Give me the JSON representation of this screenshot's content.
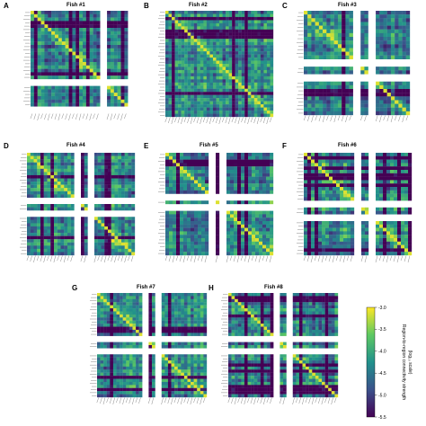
{
  "figure": {
    "panels": [
      {
        "letter": "A",
        "title": "Fish #1",
        "n": 30,
        "gaps": [
          20,
          28
        ],
        "seed": 11
      },
      {
        "letter": "B",
        "title": "Fish #2",
        "n": 34,
        "gaps": [],
        "seed": 22
      },
      {
        "letter": "C",
        "title": "Fish #3",
        "n": 28,
        "gaps": [
          13,
          17
        ],
        "seed": 33
      },
      {
        "letter": "D",
        "title": "Fish #4",
        "n": 32,
        "gaps": [
          14,
          18
        ],
        "seed": 44
      },
      {
        "letter": "E",
        "title": "Fish #5",
        "n": 30,
        "gaps": [
          12,
          15
        ],
        "seed": 55
      },
      {
        "letter": "F",
        "title": "Fish #6",
        "n": 30,
        "gaps": [
          14,
          18
        ],
        "seed": 66
      },
      {
        "letter": "G",
        "title": "Fish #7",
        "n": 34,
        "gaps": [
          14,
          18
        ],
        "seed": 77
      },
      {
        "letter": "H",
        "title": "Fish #8",
        "n": 34,
        "gaps": [
          14,
          18
        ],
        "seed": 88
      }
    ]
  },
  "colorbar": {
    "label_line1": "Region-to-region connectivity strength",
    "label_line2": "(log₁₀ scale)",
    "ticks": [
      "-3.0",
      "-3.5",
      "-4.0",
      "-4.5",
      "-5.0",
      "-5.5"
    ],
    "tick_values": [
      -3.0,
      -3.5,
      -4.0,
      -4.5,
      -5.0,
      -5.5
    ],
    "min": -5.5,
    "max": -3.0,
    "colormap": "viridis",
    "colors": [
      "#440154",
      "#3b528b",
      "#21918c",
      "#5ec962",
      "#fde725"
    ]
  },
  "chart_data": {
    "type": "heatmap",
    "colormap": "viridis",
    "value_range": [
      -5.5,
      -3.0
    ],
    "panels": [
      "Fish #1",
      "Fish #2",
      "Fish #3",
      "Fish #4",
      "Fish #5",
      "Fish #6",
      "Fish #7",
      "Fish #8"
    ]
  }
}
